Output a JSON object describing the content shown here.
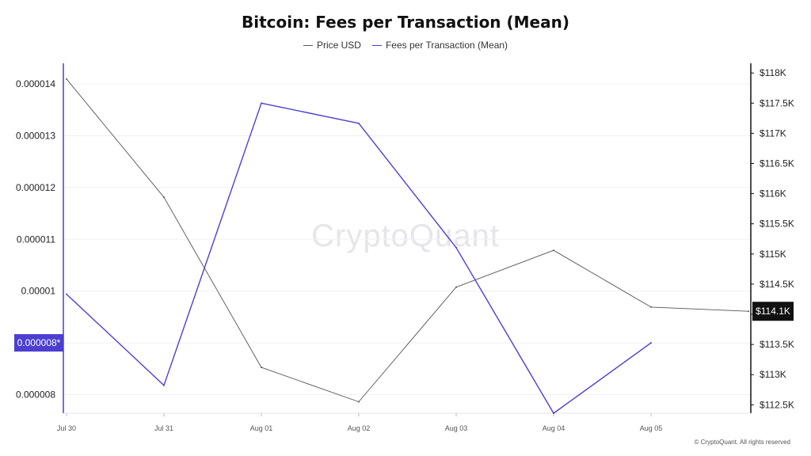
{
  "title": "Bitcoin: Fees per Transaction (Mean)",
  "watermark": "CryptoQuant",
  "copyright": "© CryptoQuant. All rights reserved",
  "chart_data": {
    "type": "line",
    "title": "Bitcoin: Fees per Transaction (Mean)",
    "categories": [
      "Jul 30",
      "Jul 31",
      "Aug 01",
      "Aug 02",
      "Aug 03",
      "Aug 04",
      "Aug 05",
      ""
    ],
    "legend_position": "top",
    "grid": true,
    "y_left": {
      "ticks": [
        8e-06,
        9e-06,
        1e-05,
        1.1e-05,
        1.2e-05,
        1.3e-05,
        1.4e-05
      ],
      "tick_labels": [
        "0.000008",
        "0.000009",
        "0.00001",
        "0.000011",
        "0.000012",
        "0.000013",
        "0.000014"
      ],
      "range": [
        7.64e-06,
        1.44e-05
      ]
    },
    "y_right": {
      "ticks": [
        112500,
        113000,
        113500,
        114000,
        114500,
        115000,
        115500,
        116000,
        116500,
        117000,
        117500,
        118000
      ],
      "tick_labels": [
        "$112.5K",
        "$113K",
        "$113.5K",
        "$114K",
        "$114.5K",
        "$115K",
        "$115.5K",
        "$116K",
        "$116.5K",
        "$117K",
        "$117.5K",
        "$118K"
      ],
      "range": [
        112360,
        118160
      ]
    },
    "series": [
      {
        "name": "Price USD",
        "axis": "right",
        "color": "#555555",
        "values": [
          117900,
          115940,
          113120,
          112550,
          114450,
          115060,
          114120,
          114050
        ]
      },
      {
        "name": "Fees per Transaction (Mean)",
        "axis": "left",
        "color": "#4c3fd0",
        "values": [
          9.94e-06,
          8.18e-06,
          1.363e-05,
          1.324e-05,
          1.084e-05,
          7.64e-06,
          9e-06,
          null
        ]
      }
    ],
    "last_value_labels": {
      "left": "0.000008*",
      "right": "$114.1K"
    }
  }
}
